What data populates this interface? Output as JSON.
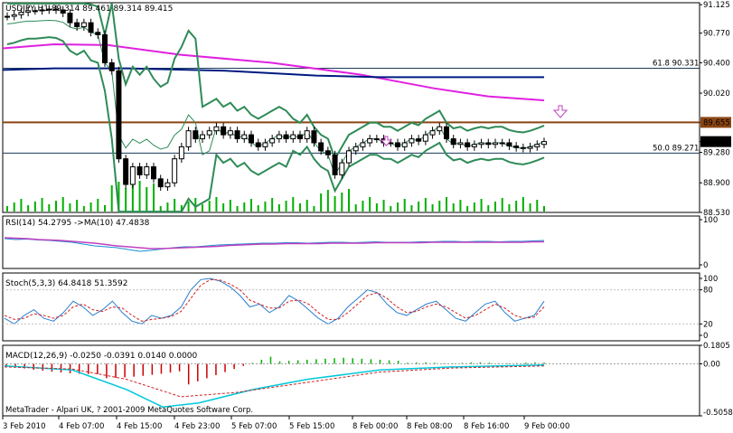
{
  "chart_data": [
    {
      "type": "candlestick",
      "title": "USDJPY,H1  89.314 89.461 89.314 89.415",
      "symbol": "USDJPY",
      "timeframe": "H1",
      "ohlc": {
        "open": 89.314,
        "high": 89.461,
        "low": 89.314,
        "close": 89.415
      },
      "ylim": [
        88.53,
        91.15
      ],
      "y_ticks": [
        "91.125",
        "90.770",
        "90.400",
        "90.020",
        "89.655",
        "89.415",
        "89.280",
        "88.900",
        "88.530"
      ],
      "price_label": "89.415",
      "level_label": "89.655",
      "fib_levels": [
        {
          "label": "61.8 90.331",
          "value": 90.331
        },
        {
          "label": "50.0 89.271",
          "value": 89.271
        }
      ],
      "horizontal_line": 89.655,
      "price_series": [
        90.98,
        91.0,
        91.03,
        91.05,
        91.05,
        91.06,
        91.07,
        91.06,
        91.02,
        90.9,
        90.85,
        90.9,
        90.78,
        90.75,
        90.4,
        90.3,
        89.2,
        88.88,
        89.1,
        89.0,
        89.1,
        88.95,
        88.85,
        88.9,
        89.2,
        89.35,
        89.55,
        89.45,
        89.5,
        89.55,
        89.6,
        89.5,
        89.55,
        89.45,
        89.5,
        89.4,
        89.35,
        89.4,
        89.45,
        89.5,
        89.45,
        89.5,
        89.45,
        89.55,
        89.4,
        89.3,
        89.25,
        89.0,
        89.15,
        89.3,
        89.35,
        89.4,
        89.45,
        89.45,
        89.4,
        89.4,
        89.35,
        89.4,
        89.45,
        89.42,
        89.5,
        89.55,
        89.6,
        89.45,
        89.38,
        89.4,
        89.35,
        89.38,
        89.4,
        89.38,
        89.4,
        89.4,
        89.36,
        89.34,
        89.33,
        89.35,
        89.38,
        89.415
      ],
      "x_ticks": [
        "3 Feb 2010",
        "4 Feb 07:00",
        "4 Feb 15:00",
        "4 Feb 23:00",
        "5 Feb 07:00",
        "5 Feb 15:00",
        "8 Feb 00:00",
        "8 Feb 08:00",
        "8 Feb 16:00",
        "9 Feb 00:00"
      ],
      "credit": "MetaTrader - Alpari UK, ? 2001-2009 MetaQuotes Software Corp."
    },
    {
      "type": "line",
      "title": "RSI(14) 54.2795  ->MA(10) 47.4838",
      "ylim": [
        0,
        100
      ],
      "y_ticks": [
        "100",
        "0"
      ]
    },
    {
      "type": "line",
      "title": "Stoch(5,3,3) 64.8418 51.3592",
      "ylim": [
        0,
        100
      ],
      "y_ticks": [
        "100",
        "80",
        "20",
        "0"
      ]
    },
    {
      "type": "bar",
      "title": "MACD(12,26,9) -0.0250 -0.0391 0.0140 0.0000",
      "ylim": [
        -0.5058,
        0.1805
      ],
      "y_ticks": [
        "0.1805",
        "0.00",
        "-0.5058"
      ]
    }
  ],
  "colors": {
    "bollinger": "#2e8b57",
    "ma_magenta": "#e020e0",
    "ma_navy": "#001a80",
    "hline": "#8b4513",
    "rsi": "#1a8fd0",
    "rsi_ma": "#c040c0",
    "stoch_main": "#2a7fd0",
    "stoch_signal": "#d02020",
    "macd_hist": "#cc0000",
    "macd_signal": "#00c8d8",
    "volume": "#00b000"
  }
}
